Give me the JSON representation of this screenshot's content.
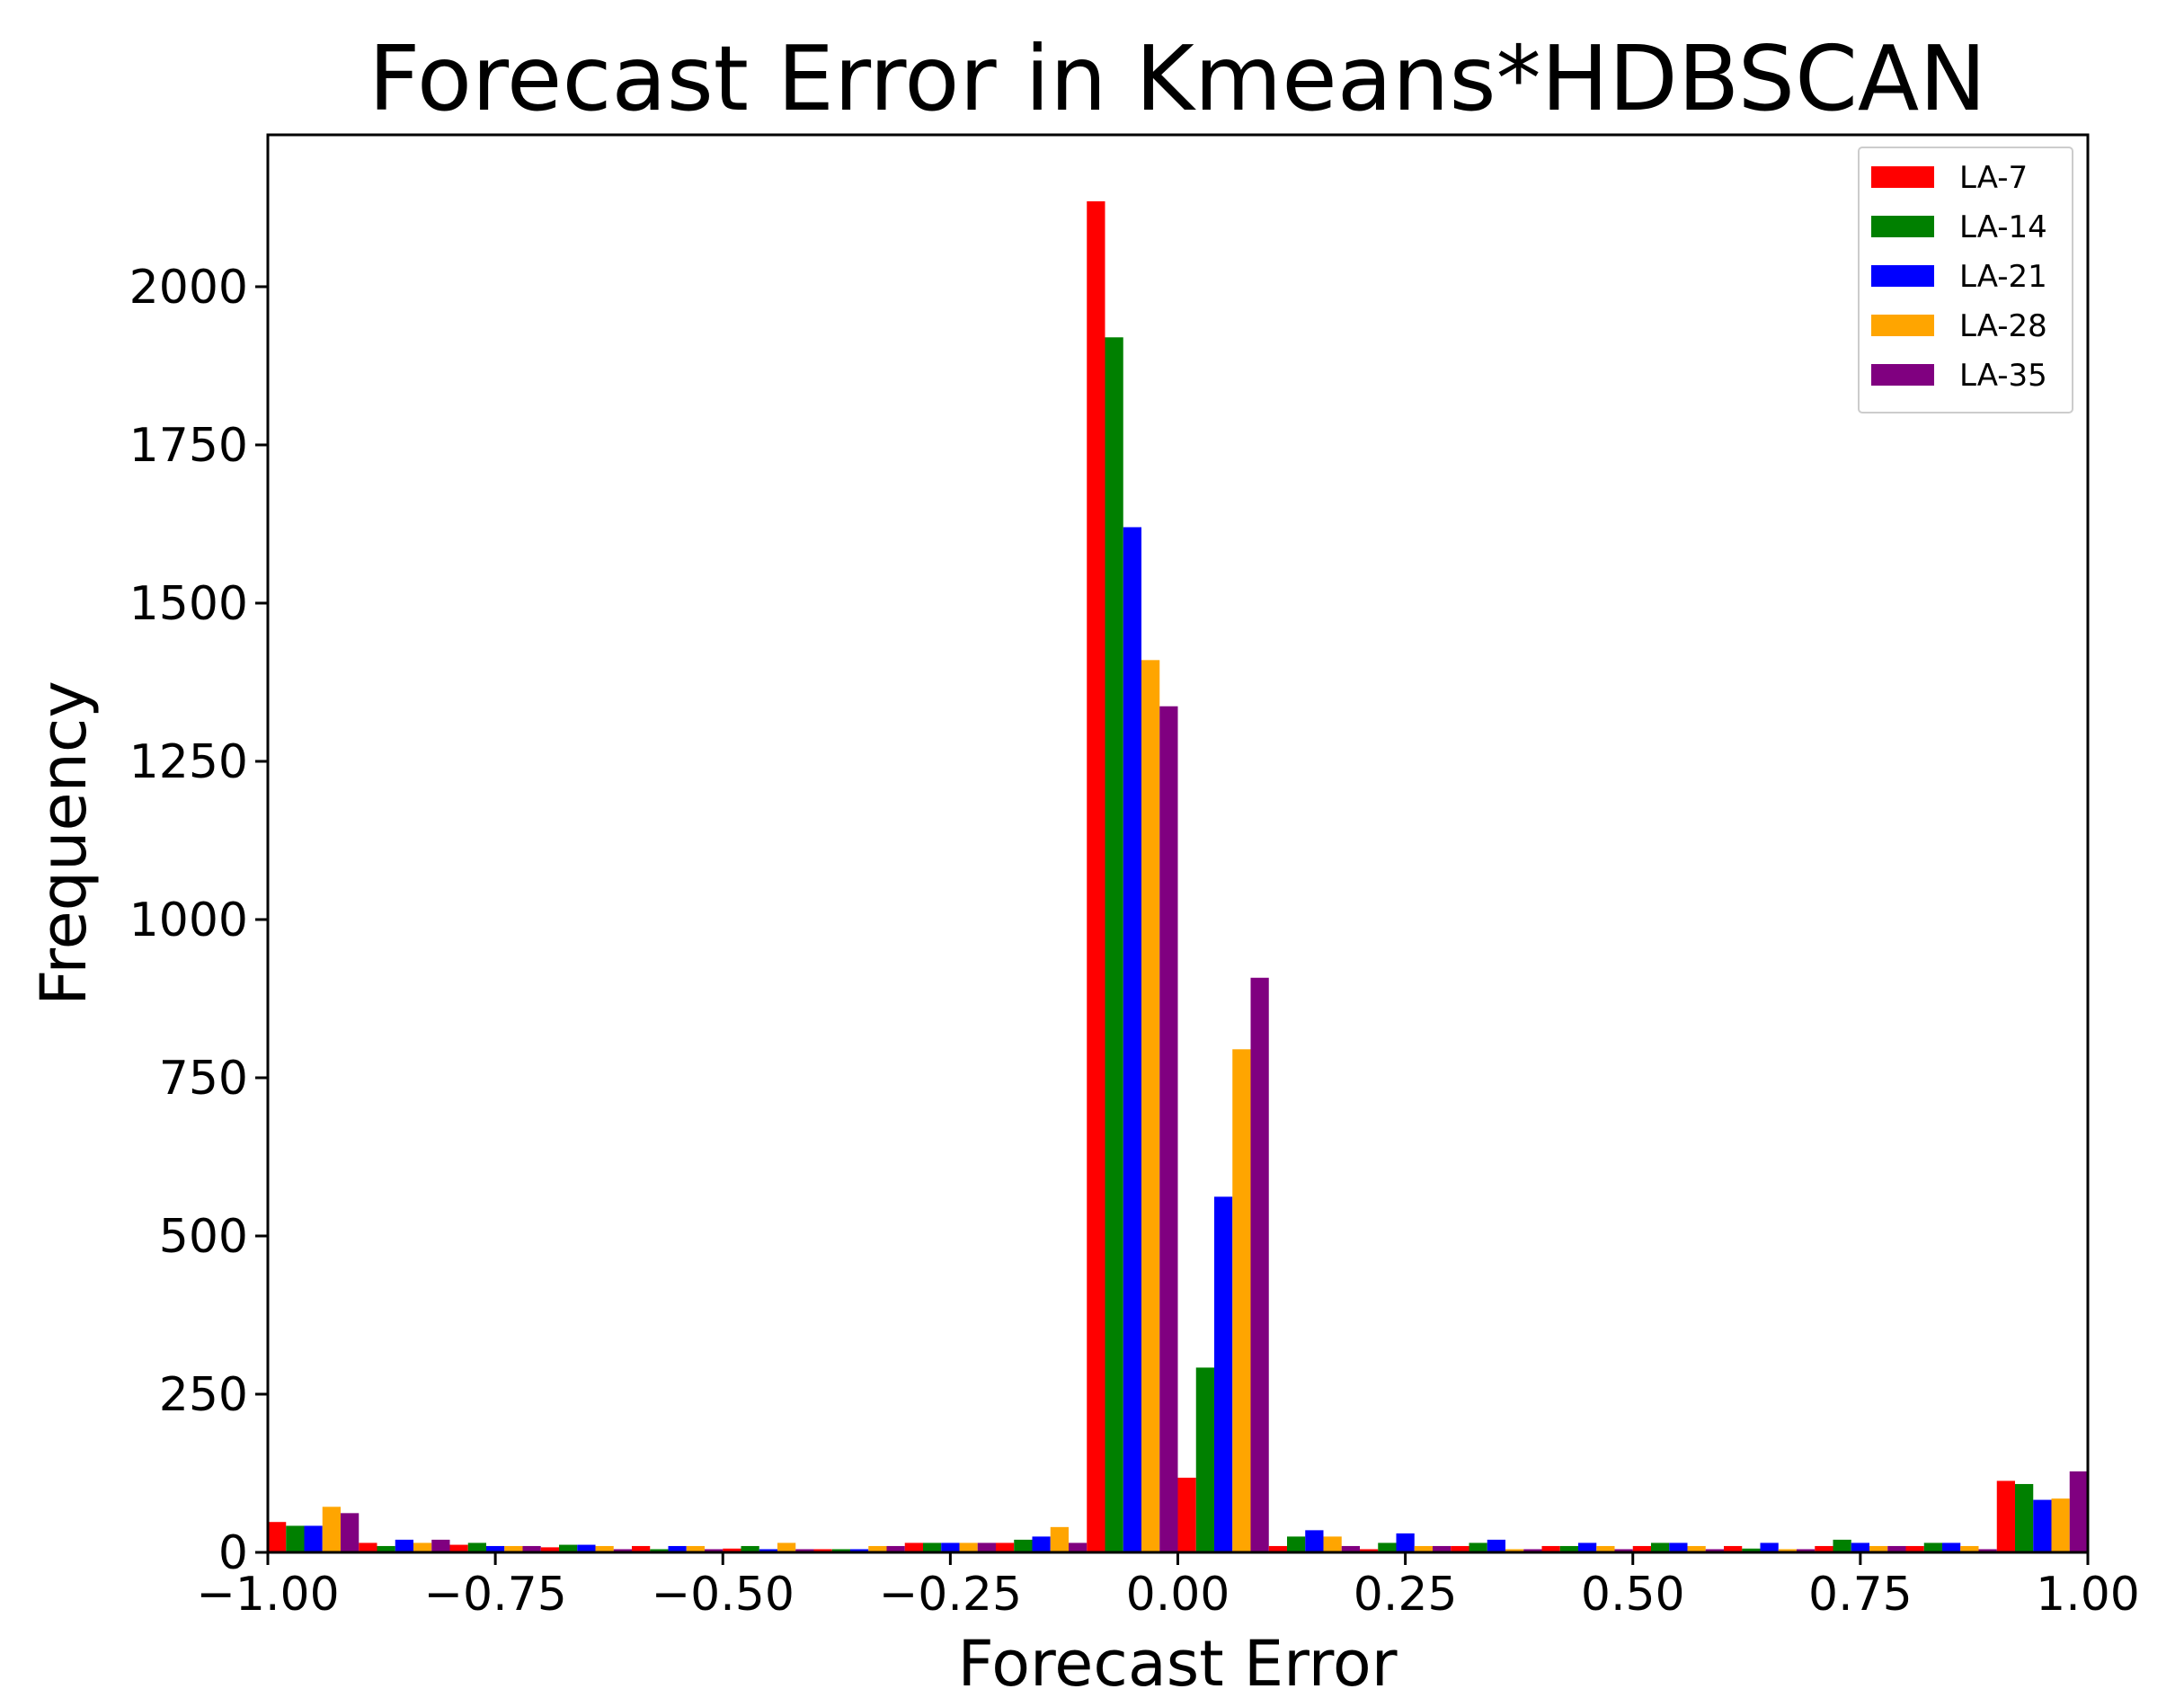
{
  "chart_data": {
    "type": "bar",
    "title": "Forecast Error in Kmeans*HDBSCAN",
    "xlabel": "Forecast Error",
    "ylabel": "Frequency",
    "xlim": [
      -1.0,
      1.0
    ],
    "ylim": [
      0,
      2240
    ],
    "xticks": [
      -1.0,
      -0.75,
      -0.5,
      -0.25,
      0.0,
      0.25,
      0.5,
      0.75,
      1.0
    ],
    "xtick_labels": [
      "−1.00",
      "−0.75",
      "−0.50",
      "−0.25",
      "0.00",
      "0.25",
      "0.50",
      "0.75",
      "1.00"
    ],
    "yticks": [
      0,
      250,
      500,
      750,
      1000,
      1250,
      1500,
      1750,
      2000
    ],
    "ytick_labels": [
      "0",
      "250",
      "500",
      "750",
      "1000",
      "1250",
      "1500",
      "1750",
      "2000"
    ],
    "bin_edges": [
      -1.0,
      -0.9,
      -0.8,
      -0.7,
      -0.6,
      -0.5,
      -0.4,
      -0.3,
      -0.2,
      -0.1,
      0.0,
      0.1,
      0.2,
      0.3,
      0.4,
      0.5,
      0.6,
      0.7,
      0.8,
      0.9,
      1.0
    ],
    "grid": false,
    "legend_position": "top-right",
    "series": [
      {
        "name": "LA-7",
        "color": "#ff0000",
        "values": [
          48,
          15,
          12,
          8,
          10,
          6,
          5,
          15,
          15,
          2135,
          118,
          10,
          5,
          10,
          10,
          10,
          10,
          10,
          10,
          113
        ]
      },
      {
        "name": "LA-14",
        "color": "#008000",
        "values": [
          42,
          10,
          15,
          12,
          5,
          10,
          5,
          15,
          20,
          1920,
          292,
          25,
          15,
          15,
          10,
          15,
          6,
          20,
          15,
          108
        ]
      },
      {
        "name": "LA-21",
        "color": "#0000ff",
        "values": [
          42,
          20,
          10,
          12,
          10,
          5,
          5,
          15,
          25,
          1620,
          562,
          35,
          30,
          20,
          15,
          15,
          15,
          15,
          15,
          83
        ]
      },
      {
        "name": "LA-28",
        "color": "#ffa500",
        "values": [
          72,
          15,
          10,
          10,
          10,
          15,
          10,
          15,
          40,
          1410,
          795,
          25,
          10,
          5,
          10,
          10,
          5,
          10,
          10,
          85
        ]
      },
      {
        "name": "LA-35",
        "color": "#800080",
        "values": [
          62,
          20,
          10,
          5,
          5,
          5,
          10,
          15,
          15,
          1337,
          908,
          10,
          10,
          5,
          5,
          5,
          5,
          10,
          5,
          128
        ]
      }
    ]
  }
}
